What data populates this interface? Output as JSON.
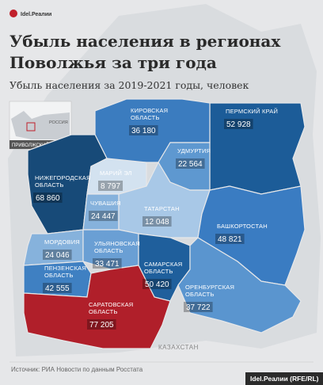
{
  "header": {
    "brand": "Idel.Реалии",
    "title_lines": [
      "Убыль населения в регионах",
      "Поволжья за три года"
    ],
    "subtitle": "Убыль населения за 2019-2021 годы, человек"
  },
  "inset": {
    "country": "РОССИЯ",
    "district": "ПРИВОЛЖСКИЙ ОКРУГ"
  },
  "regions": [
    {
      "name_lines": [
        "ПЕРМСКИЙ КРАЙ"
      ],
      "value": "52 928",
      "color": "#1c5c98"
    },
    {
      "name_lines": [
        "КИРОВСКАЯ",
        "ОБЛАСТЬ"
      ],
      "value": "36 180",
      "color": "#3b7cbf"
    },
    {
      "name_lines": [
        "УДМУРТИЯ"
      ],
      "value": "22 564",
      "color": "#5e98d0"
    },
    {
      "name_lines": [
        "НИЖЕГОРОДСКАЯ",
        "ОБЛАСТЬ"
      ],
      "value": "68 860",
      "color": "#174a78"
    },
    {
      "name_lines": [
        "МАРИЙ ЭЛ"
      ],
      "value": "8 797",
      "color": "#d3e2f0"
    },
    {
      "name_lines": [
        "ЧУВАШИЯ"
      ],
      "value": "24 447",
      "color": "#86b2dc"
    },
    {
      "name_lines": [
        "ТАТАРСТАН"
      ],
      "value": "12 048",
      "color": "#a8c8e7"
    },
    {
      "name_lines": [
        "БАШКОРТОСТАН"
      ],
      "value": "48 821",
      "color": "#3a7cc2"
    },
    {
      "name_lines": [
        "МОРДОВИЯ"
      ],
      "value": "24 046",
      "color": "#86b2dc"
    },
    {
      "name_lines": [
        "УЛЬЯНОВСКАЯ",
        "ОБЛАСТЬ"
      ],
      "value": "33 471",
      "color": "#6a9fd4"
    },
    {
      "name_lines": [
        "ПЕНЗЕНСКАЯ",
        "ОБЛАСТЬ"
      ],
      "value": "42 555",
      "color": "#3f80c2"
    },
    {
      "name_lines": [
        "САМАРСКАЯ",
        "ОБЛАСТЬ"
      ],
      "value": "50 420",
      "color": "#1f5f9c"
    },
    {
      "name_lines": [
        "ОРЕНБУРГСКАЯ",
        "ОБЛАСТЬ"
      ],
      "value": "37 722",
      "color": "#5a95cf"
    },
    {
      "name_lines": [
        "САРАТОВСКАЯ",
        "ОБЛАСТЬ"
      ],
      "value": "77 205",
      "color": "#b01f2a"
    }
  ],
  "map_labels": {
    "neighbor": "КАЗАХСТАН"
  },
  "footer": {
    "source": "Источник: РИА Новости по данным Росстата",
    "brand": "Idel.Реалии (RFE/RL)"
  }
}
